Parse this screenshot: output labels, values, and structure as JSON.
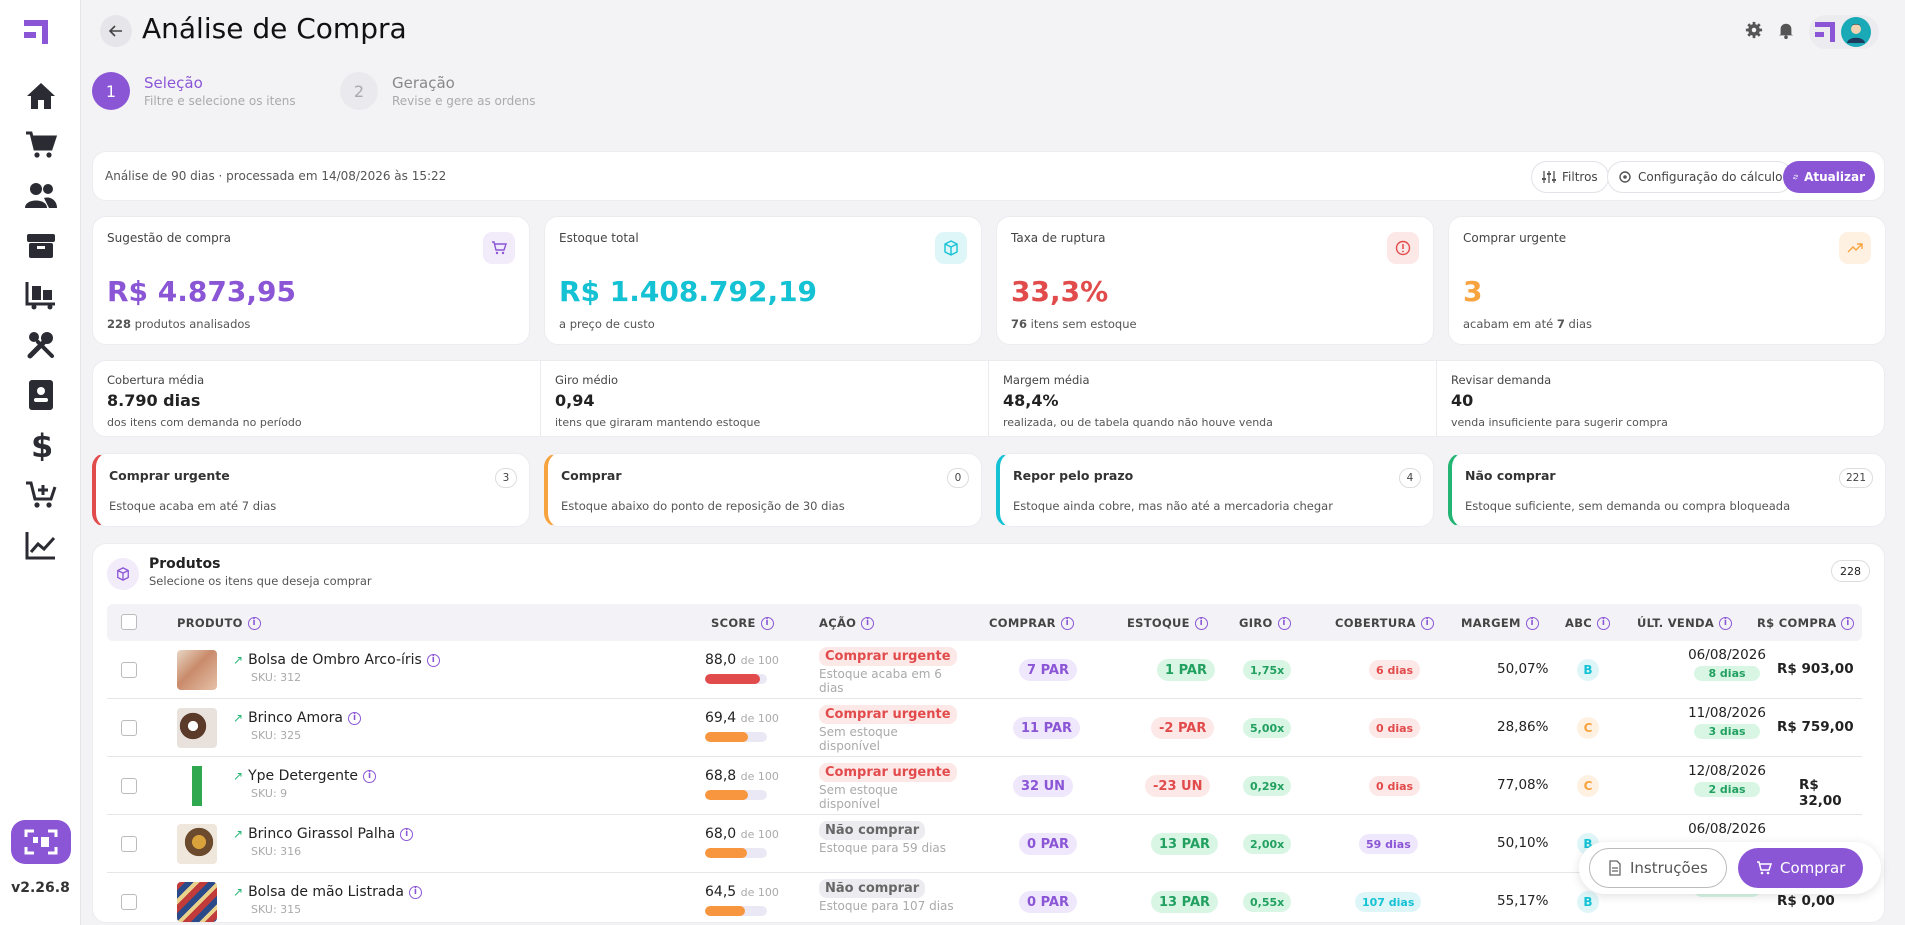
{
  "app": {
    "version": "v2.26.8"
  },
  "header": {
    "title": "Análise de Compra"
  },
  "steps": [
    {
      "num": "1",
      "title": "Seleção",
      "subtitle": "Filtre e selecione os itens"
    },
    {
      "num": "2",
      "title": "Geração",
      "subtitle": "Revise e gere as ordens"
    }
  ],
  "filterbar": {
    "info": "Análise de 90 dias · processada em 14/08/2026 às 15:22",
    "filters": "Filtros",
    "config": "Configuração do cálculo",
    "refresh": "Atualizar"
  },
  "stats": [
    {
      "label": "Sugestão de compra",
      "value": "R$ 4.873,95",
      "sub_strong": "228",
      "sub": "produtos analisados",
      "color": "#8b56d6"
    },
    {
      "label": "Estoque total",
      "value": "R$ 1.408.792,19",
      "sub_strong": "",
      "sub": "a preço de custo",
      "color": "#14c2d4"
    },
    {
      "label": "Taxa de ruptura",
      "value": "33,3%",
      "sub_strong": "76",
      "sub": "itens sem estoque",
      "color": "#e24b4b"
    },
    {
      "label": "Comprar urgente",
      "value": "3",
      "sub_pre": "acabam em até",
      "sub_strong": "7",
      "sub": "dias",
      "color": "#f7a340"
    }
  ],
  "metrics": [
    {
      "label": "Cobertura média",
      "value": "8.790 dias",
      "sub": "dos itens com demanda no período"
    },
    {
      "label": "Giro médio",
      "value": "0,94",
      "sub": "itens que giraram mantendo estoque"
    },
    {
      "label": "Margem média",
      "value": "48,4%",
      "sub": "realizada, ou de tabela quando não houve venda"
    },
    {
      "label": "Revisar demanda",
      "value": "40",
      "sub": "venda insuficiente para sugerir compra"
    }
  ],
  "categories": [
    {
      "title": "Comprar urgente",
      "sub": "Estoque acaba em até 7 dias",
      "count": "3",
      "color": "#e24b4b"
    },
    {
      "title": "Comprar",
      "sub": "Estoque abaixo do ponto de reposição de 30 dias",
      "count": "0",
      "color": "#f7a340"
    },
    {
      "title": "Repor pelo prazo",
      "sub": "Estoque ainda cobre, mas não até a mercadoria chegar",
      "count": "4",
      "color": "#14c2d4"
    },
    {
      "title": "Não comprar",
      "sub": "Estoque suficiente, sem demanda ou compra bloqueada",
      "count": "221",
      "color": "#22b573"
    }
  ],
  "products": {
    "title": "Produtos",
    "subtitle": "Selecione os itens que deseja comprar",
    "count": "228",
    "columns": {
      "produto": "PRODUTO",
      "score": "SCORE",
      "acao": "AÇÃO",
      "comprar": "COMPRAR",
      "estoque": "ESTOQUE",
      "giro": "GIRO",
      "cobertura": "COBERTURA",
      "margem": "MARGEM",
      "abc": "ABC",
      "ult_venda": "ÚLT. VENDA",
      "rs_compra": "R$ COMPRA"
    },
    "score_suffix": "de 100",
    "rows": [
      {
        "name": "Bolsa de Ombro Arco-íris",
        "sku": "SKU: 312",
        "score": "88,0",
        "score_pct": 0.88,
        "acao": "Comprar urgente",
        "acao_sub": "Estoque acaba em 6 dias",
        "comprar": "7 PAR",
        "estoque": "1 PAR",
        "giro": "1,75x",
        "cobertura": "6 dias",
        "margem": "50,07%",
        "abc": "B",
        "data": "06/08/2026",
        "dias": "8 dias",
        "compra": "R$ 903,00"
      },
      {
        "name": "Brinco Amora",
        "sku": "SKU: 325",
        "score": "69,4",
        "score_pct": 0.694,
        "acao": "Comprar urgente",
        "acao_sub": "Sem estoque disponível",
        "comprar": "11 PAR",
        "estoque": "-2 PAR",
        "giro": "5,00x",
        "cobertura": "0 dias",
        "margem": "28,86%",
        "abc": "C",
        "data": "11/08/2026",
        "dias": "3 dias",
        "compra": "R$ 759,00"
      },
      {
        "name": "Ype Detergente",
        "sku": "SKU: 9",
        "score": "68,8",
        "score_pct": 0.688,
        "acao": "Comprar urgente",
        "acao_sub": "Sem estoque disponível",
        "comprar": "32 UN",
        "estoque": "-23 UN",
        "giro": "0,29x",
        "cobertura": "0 dias",
        "margem": "77,08%",
        "abc": "C",
        "data": "12/08/2026",
        "dias": "2 dias",
        "compra": "R$ 32,00"
      },
      {
        "name": "Brinco Girassol Palha",
        "sku": "SKU: 316",
        "score": "68,0",
        "score_pct": 0.68,
        "acao": "Não comprar",
        "acao_sub": "Estoque para 59 dias",
        "comprar": "0 PAR",
        "estoque": "13 PAR",
        "giro": "2,00x",
        "cobertura": "59 dias",
        "margem": "50,10%",
        "abc": "B",
        "data": "06/08/2026",
        "dias": "",
        "compra": ""
      },
      {
        "name": "Bolsa de mão Listrada",
        "sku": "SKU: 315",
        "score": "64,5",
        "score_pct": 0.645,
        "acao": "Não comprar",
        "acao_sub": "Estoque para 107 dias",
        "comprar": "0 PAR",
        "estoque": "13 PAR",
        "giro": "0,55x",
        "cobertura": "107 dias",
        "margem": "55,17%",
        "abc": "B",
        "data": "",
        "dias": "8 dias",
        "compra": "R$ 0,00"
      }
    ]
  },
  "actions": {
    "instrucoes": "Instruções",
    "comprar": "Comprar"
  }
}
